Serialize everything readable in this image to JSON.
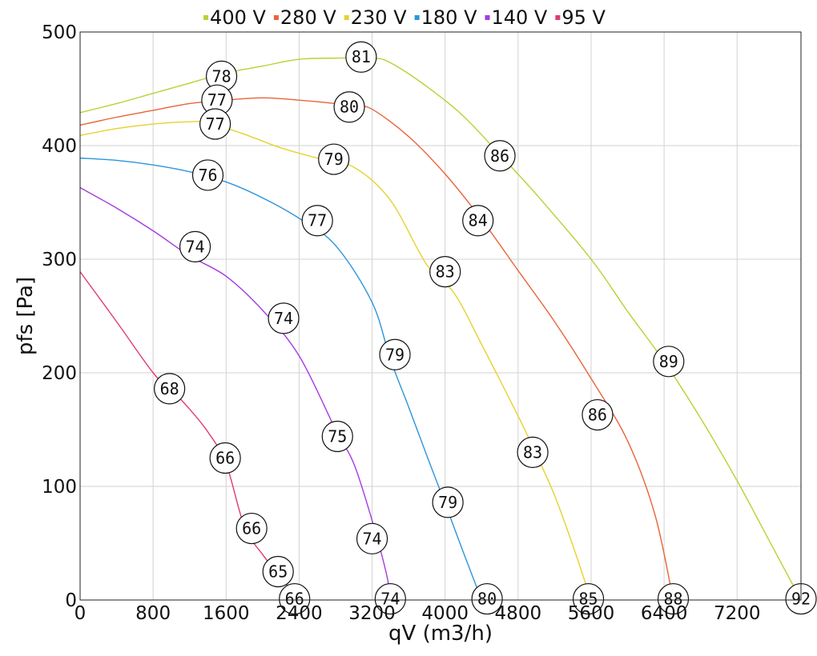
{
  "chart_data": {
    "type": "line",
    "xlabel": "qV (m3/h)",
    "ylabel": "pfs [Pa]",
    "xlim": [
      0,
      7900
    ],
    "ylim": [
      0,
      500
    ],
    "xticks": [
      "0",
      "800",
      "1600",
      "2400",
      "3200",
      "4000",
      "4800",
      "5600",
      "6400",
      "7200"
    ],
    "xtick_values": [
      0,
      800,
      1600,
      2400,
      3200,
      4000,
      4800,
      5600,
      6400,
      7200
    ],
    "yticks": [
      "0",
      "100",
      "200",
      "300",
      "400",
      "500"
    ],
    "ytick_values": [
      0,
      100,
      200,
      300,
      400,
      500
    ],
    "grid": true,
    "legend_position": "top",
    "series": [
      {
        "name": "400 V",
        "color": "#b5d334",
        "x": [
          0,
          400,
          800,
          1200,
          1600,
          2000,
          2400,
          2800,
          3200,
          3400,
          3800,
          4200,
          4600,
          5000,
          5600,
          6000,
          6400,
          6800,
          7200,
          7600,
          7900
        ],
        "y": [
          429,
          437,
          446,
          455,
          464,
          470,
          476,
          477,
          477,
          473,
          452,
          426,
          392,
          357,
          300,
          254,
          210,
          160,
          105,
          45,
          0
        ],
        "markers": [
          {
            "x": 1550,
            "y": 461,
            "label": "78"
          },
          {
            "x": 3080,
            "y": 478,
            "label": "81"
          },
          {
            "x": 4600,
            "y": 391,
            "label": "86"
          },
          {
            "x": 6450,
            "y": 210,
            "label": "89"
          },
          {
            "x": 7900,
            "y": 1,
            "label": "92"
          }
        ]
      },
      {
        "name": "280 V",
        "color": "#e8643a",
        "x": [
          0,
          400,
          800,
          1200,
          1600,
          2000,
          2400,
          2800,
          3000,
          3200,
          3600,
          4000,
          4400,
          4800,
          5200,
          5600,
          6000,
          6300,
          6500
        ],
        "y": [
          418,
          425,
          431,
          437,
          440,
          442,
          440,
          437,
          435,
          432,
          408,
          375,
          335,
          290,
          245,
          195,
          140,
          75,
          0
        ],
        "markers": [
          {
            "x": 1500,
            "y": 440,
            "label": "77"
          },
          {
            "x": 2950,
            "y": 434,
            "label": "80"
          },
          {
            "x": 4360,
            "y": 334,
            "label": "84"
          },
          {
            "x": 5670,
            "y": 163,
            "label": "86"
          },
          {
            "x": 6500,
            "y": 1,
            "label": "88"
          }
        ]
      },
      {
        "name": "230 V",
        "color": "#e6d22e",
        "x": [
          0,
          400,
          800,
          1200,
          1400,
          1800,
          2200,
          2600,
          3000,
          3400,
          3800,
          4100,
          4400,
          4800,
          5000,
          5200,
          5400,
          5600
        ],
        "y": [
          409,
          415,
          419,
          421,
          420,
          410,
          398,
          389,
          381,
          352,
          295,
          270,
          225,
          162,
          128,
          92,
          48,
          0
        ],
        "markers": [
          {
            "x": 1480,
            "y": 419,
            "label": "77"
          },
          {
            "x": 2780,
            "y": 388,
            "label": "79"
          },
          {
            "x": 4000,
            "y": 289,
            "label": "83"
          },
          {
            "x": 4960,
            "y": 130,
            "label": "83"
          },
          {
            "x": 5570,
            "y": 1,
            "label": "85"
          }
        ]
      },
      {
        "name": "180 V",
        "color": "#2c95da",
        "x": [
          0,
          400,
          800,
          1200,
          1600,
          2000,
          2400,
          2800,
          3200,
          3400,
          3600,
          3800,
          4000,
          4200,
          4400
        ],
        "y": [
          389,
          387,
          383,
          377,
          368,
          354,
          336,
          312,
          262,
          212,
          170,
          127,
          85,
          42,
          0
        ],
        "markers": [
          {
            "x": 1400,
            "y": 374,
            "label": "76"
          },
          {
            "x": 2600,
            "y": 334,
            "label": "77"
          },
          {
            "x": 3450,
            "y": 216,
            "label": "79"
          },
          {
            "x": 4030,
            "y": 86,
            "label": "79"
          },
          {
            "x": 4460,
            "y": 1,
            "label": "80"
          }
        ]
      },
      {
        "name": "140 V",
        "color": "#a43be0",
        "x": [
          0,
          400,
          800,
          1200,
          1600,
          2000,
          2400,
          2800,
          3000,
          3200,
          3360,
          3400
        ],
        "y": [
          363,
          345,
          325,
          303,
          285,
          255,
          215,
          150,
          120,
          70,
          22,
          0
        ],
        "markers": [
          {
            "x": 1260,
            "y": 311,
            "label": "74"
          },
          {
            "x": 2230,
            "y": 248,
            "label": "74"
          },
          {
            "x": 2820,
            "y": 144,
            "label": "75"
          },
          {
            "x": 3200,
            "y": 54,
            "label": "74"
          },
          {
            "x": 3400,
            "y": 1,
            "label": "74"
          }
        ]
      },
      {
        "name": "95 V",
        "color": "#e23b6e",
        "x": [
          0,
          400,
          800,
          1000,
          1200,
          1400,
          1600,
          1800,
          2000,
          2200,
          2400
        ],
        "y": [
          289,
          245,
          200,
          185,
          168,
          148,
          120,
          65,
          40,
          20,
          0
        ],
        "markers": [
          {
            "x": 980,
            "y": 186,
            "label": "68"
          },
          {
            "x": 1590,
            "y": 125,
            "label": "66"
          },
          {
            "x": 1880,
            "y": 63,
            "label": "66"
          },
          {
            "x": 2170,
            "y": 25,
            "label": "65"
          },
          {
            "x": 2350,
            "y": 1,
            "label": "66"
          }
        ]
      }
    ]
  }
}
